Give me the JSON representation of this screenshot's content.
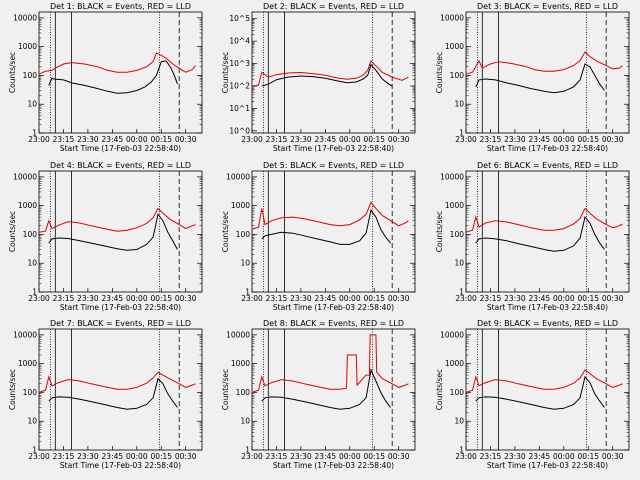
{
  "colors": {
    "events": "#000000",
    "lld": "#e00000",
    "background": "#f0f0f0"
  },
  "x_tick_labels": [
    "23:00",
    "23:15",
    "23:30",
    "23:45",
    "00:00",
    "00:15",
    "00:30"
  ],
  "x_label": "Start Time (17-Feb-03 22:58:40)",
  "y_label": "Counts/sec",
  "chart_data": [
    {
      "type": "line",
      "title": "Det 1: BLACK = Events, RED = LLD",
      "yscale": "log",
      "ylim": [
        1,
        16000
      ],
      "ytick_labels": [
        "1",
        "10",
        "100",
        "1000",
        "10000"
      ],
      "xlim_minutes": [
        0,
        100
      ],
      "series": [
        {
          "name": "Events",
          "x": [
            6,
            8,
            9,
            15,
            20,
            28,
            36,
            42,
            48,
            54,
            60,
            65,
            69,
            72,
            75,
            78,
            81,
            83,
            85
          ],
          "y": [
            45,
            80,
            75,
            70,
            55,
            45,
            35,
            28,
            24,
            25,
            30,
            40,
            60,
            100,
            300,
            320,
            180,
            100,
            50
          ]
        },
        {
          "name": "LLD",
          "x": [
            0,
            4,
            8,
            10,
            15,
            20,
            28,
            36,
            42,
            48,
            54,
            60,
            66,
            70,
            72,
            75,
            78,
            82,
            86,
            88,
            90,
            94,
            96
          ],
          "y": [
            110,
            140,
            150,
            180,
            250,
            280,
            250,
            200,
            150,
            130,
            130,
            150,
            200,
            300,
            600,
            500,
            400,
            250,
            180,
            150,
            130,
            160,
            220
          ]
        }
      ]
    },
    {
      "type": "line",
      "title": "Det 2: BLACK = Events, RED = LLD",
      "yscale": "log",
      "ylim": [
        0.8,
        200000
      ],
      "ytick_labels": [
        "10^0",
        "10^1",
        "10^2",
        "10^3",
        "10^4",
        "10^5"
      ],
      "xlim_minutes": [
        0,
        100
      ],
      "series": [
        {
          "name": "Events",
          "x": [
            6,
            10,
            15,
            22,
            30,
            38,
            45,
            52,
            58,
            64,
            68,
            71,
            73,
            76,
            80,
            84,
            86
          ],
          "y": [
            100,
            120,
            190,
            250,
            280,
            260,
            220,
            170,
            140,
            150,
            200,
            300,
            900,
            500,
            200,
            120,
            100
          ]
        },
        {
          "name": "LLD",
          "x": [
            0,
            4,
            6,
            10,
            15,
            22,
            30,
            38,
            45,
            52,
            58,
            64,
            68,
            71,
            73,
            76,
            80,
            86,
            92,
            96
          ],
          "y": [
            100,
            110,
            400,
            250,
            320,
            380,
            400,
            350,
            300,
            230,
            200,
            220,
            300,
            500,
            1300,
            800,
            400,
            250,
            180,
            250
          ]
        }
      ]
    },
    {
      "type": "line",
      "title": "Det 3: BLACK = Events, RED = LLD",
      "yscale": "log",
      "ylim": [
        1,
        16000
      ],
      "ytick_labels": [
        "1",
        "10",
        "100",
        "1000",
        "10000"
      ],
      "xlim_minutes": [
        0,
        100
      ],
      "series": [
        {
          "name": "Events",
          "x": [
            6,
            8,
            12,
            18,
            25,
            32,
            40,
            48,
            54,
            60,
            66,
            70,
            73,
            76,
            79,
            82,
            85
          ],
          "y": [
            40,
            70,
            75,
            70,
            55,
            45,
            35,
            28,
            25,
            28,
            40,
            70,
            250,
            200,
            100,
            50,
            30
          ]
        },
        {
          "name": "LLD",
          "x": [
            0,
            4,
            8,
            10,
            15,
            20,
            28,
            36,
            42,
            48,
            54,
            60,
            66,
            70,
            73,
            76,
            80,
            86,
            90,
            94,
            96
          ],
          "y": [
            110,
            130,
            320,
            180,
            250,
            300,
            260,
            210,
            160,
            140,
            140,
            160,
            220,
            330,
            650,
            450,
            320,
            220,
            170,
            180,
            220
          ]
        }
      ]
    },
    {
      "type": "line",
      "title": "Det 4: BLACK = Events, RED = LLD",
      "yscale": "log",
      "ylim": [
        1,
        16000
      ],
      "ytick_labels": [
        "1",
        "10",
        "100",
        "1000",
        "10000"
      ],
      "xlim_minutes": [
        0,
        100
      ],
      "series": [
        {
          "name": "Events",
          "x": [
            6,
            8,
            12,
            18,
            25,
            32,
            40,
            48,
            54,
            60,
            66,
            70,
            73,
            76,
            79,
            82,
            85
          ],
          "y": [
            50,
            70,
            75,
            72,
            60,
            50,
            40,
            32,
            28,
            30,
            45,
            80,
            500,
            300,
            120,
            60,
            30
          ]
        },
        {
          "name": "LLD",
          "x": [
            0,
            4,
            6,
            8,
            12,
            18,
            25,
            32,
            40,
            48,
            54,
            60,
            66,
            70,
            73,
            76,
            80,
            86,
            90,
            94,
            96
          ],
          "y": [
            120,
            130,
            300,
            160,
            210,
            280,
            250,
            200,
            160,
            130,
            140,
            170,
            240,
            380,
            800,
            550,
            350,
            220,
            160,
            200,
            220
          ]
        }
      ]
    },
    {
      "type": "line",
      "title": "Det 5: BLACK = Events, RED = LLD",
      "yscale": "log",
      "ylim": [
        1,
        16000
      ],
      "ytick_labels": [
        "1",
        "10",
        "100",
        "1000",
        "10000"
      ],
      "xlim_minutes": [
        0,
        100
      ],
      "series": [
        {
          "name": "Events",
          "x": [
            6,
            8,
            12,
            18,
            25,
            32,
            40,
            48,
            54,
            60,
            66,
            70,
            73,
            76,
            79,
            82,
            85
          ],
          "y": [
            70,
            90,
            100,
            120,
            110,
            90,
            70,
            55,
            45,
            45,
            60,
            110,
            700,
            400,
            150,
            80,
            50
          ]
        },
        {
          "name": "LLD",
          "x": [
            0,
            4,
            6,
            8,
            12,
            18,
            25,
            32,
            40,
            48,
            54,
            60,
            66,
            70,
            73,
            76,
            80,
            86,
            90,
            94,
            96
          ],
          "y": [
            150,
            180,
            800,
            220,
            300,
            380,
            400,
            350,
            280,
            220,
            200,
            220,
            320,
            500,
            1300,
            800,
            450,
            280,
            200,
            250,
            300
          ]
        }
      ]
    },
    {
      "type": "line",
      "title": "Det 6: BLACK = Events, RED = LLD",
      "yscale": "log",
      "ylim": [
        1,
        16000
      ],
      "ytick_labels": [
        "1",
        "10",
        "100",
        "1000",
        "10000"
      ],
      "xlim_minutes": [
        0,
        100
      ],
      "series": [
        {
          "name": "Events",
          "x": [
            6,
            8,
            12,
            18,
            25,
            32,
            40,
            48,
            54,
            60,
            66,
            70,
            73,
            76,
            79,
            82,
            85
          ],
          "y": [
            50,
            70,
            75,
            70,
            60,
            48,
            38,
            30,
            26,
            28,
            40,
            75,
            400,
            250,
            100,
            50,
            30
          ]
        },
        {
          "name": "LLD",
          "x": [
            0,
            4,
            6,
            8,
            12,
            18,
            25,
            32,
            40,
            48,
            54,
            60,
            66,
            70,
            73,
            76,
            80,
            86,
            90,
            94,
            96
          ],
          "y": [
            120,
            140,
            400,
            180,
            250,
            300,
            270,
            220,
            170,
            140,
            140,
            160,
            230,
            360,
            800,
            550,
            350,
            220,
            170,
            200,
            230
          ]
        }
      ]
    },
    {
      "type": "line",
      "title": "Det 7: BLACK = Events, RED = LLD",
      "yscale": "log",
      "ylim": [
        1,
        16000
      ],
      "ytick_labels": [
        "1",
        "10",
        "100",
        "1000",
        "10000"
      ],
      "xlim_minutes": [
        0,
        100
      ],
      "series": [
        {
          "name": "Events",
          "x": [
            6,
            8,
            12,
            18,
            25,
            32,
            40,
            48,
            54,
            60,
            66,
            70,
            73,
            76,
            79,
            82,
            85
          ],
          "y": [
            50,
            65,
            70,
            68,
            58,
            48,
            38,
            30,
            26,
            28,
            38,
            65,
            300,
            200,
            90,
            50,
            30
          ]
        },
        {
          "name": "LLD",
          "x": [
            0,
            4,
            6,
            8,
            12,
            18,
            25,
            32,
            40,
            48,
            54,
            60,
            66,
            70,
            73,
            76,
            80,
            86,
            90,
            94,
            96
          ],
          "y": [
            100,
            120,
            350,
            170,
            220,
            280,
            250,
            200,
            160,
            130,
            130,
            150,
            210,
            320,
            500,
            400,
            300,
            200,
            150,
            180,
            200
          ]
        }
      ]
    },
    {
      "type": "line",
      "title": "Det 8: BLACK = Events, RED = LLD",
      "yscale": "log",
      "ylim": [
        1,
        16000
      ],
      "ytick_labels": [
        "1",
        "10",
        "100",
        "1000",
        "10000"
      ],
      "xlim_minutes": [
        0,
        100
      ],
      "series": [
        {
          "name": "Events",
          "x": [
            6,
            8,
            12,
            18,
            25,
            32,
            40,
            48,
            54,
            60,
            66,
            70,
            73,
            76,
            79,
            82,
            85
          ],
          "y": [
            50,
            65,
            70,
            68,
            58,
            48,
            38,
            30,
            26,
            28,
            38,
            65,
            600,
            250,
            100,
            50,
            30
          ]
        },
        {
          "name": "LLD",
          "x": [
            0,
            4,
            6,
            8,
            12,
            18,
            25,
            32,
            40,
            48,
            54,
            58,
            58.5,
            64,
            64.5,
            70,
            72,
            72.5,
            76,
            76.5,
            80,
            86,
            90,
            94,
            96
          ],
          "y": [
            100,
            120,
            350,
            170,
            220,
            280,
            250,
            200,
            160,
            130,
            130,
            140,
            2000,
            2000,
            180,
            400,
            400,
            10000,
            10000,
            500,
            300,
            200,
            150,
            180,
            200
          ]
        }
      ]
    },
    {
      "type": "line",
      "title": "Det 9: BLACK = Events, RED = LLD",
      "yscale": "log",
      "ylim": [
        1,
        16000
      ],
      "ytick_labels": [
        "1",
        "10",
        "100",
        "1000",
        "10000"
      ],
      "xlim_minutes": [
        0,
        100
      ],
      "series": [
        {
          "name": "Events",
          "x": [
            6,
            8,
            12,
            18,
            25,
            32,
            40,
            48,
            54,
            60,
            66,
            70,
            73,
            76,
            79,
            82,
            85
          ],
          "y": [
            50,
            65,
            70,
            68,
            58,
            48,
            38,
            30,
            26,
            28,
            38,
            65,
            350,
            220,
            90,
            50,
            30
          ]
        },
        {
          "name": "LLD",
          "x": [
            0,
            4,
            6,
            8,
            12,
            18,
            25,
            32,
            40,
            48,
            54,
            60,
            66,
            70,
            73,
            76,
            80,
            86,
            90,
            94,
            96
          ],
          "y": [
            100,
            120,
            350,
            170,
            220,
            280,
            250,
            200,
            160,
            130,
            130,
            150,
            210,
            320,
            600,
            450,
            300,
            200,
            150,
            180,
            200
          ]
        }
      ]
    }
  ]
}
